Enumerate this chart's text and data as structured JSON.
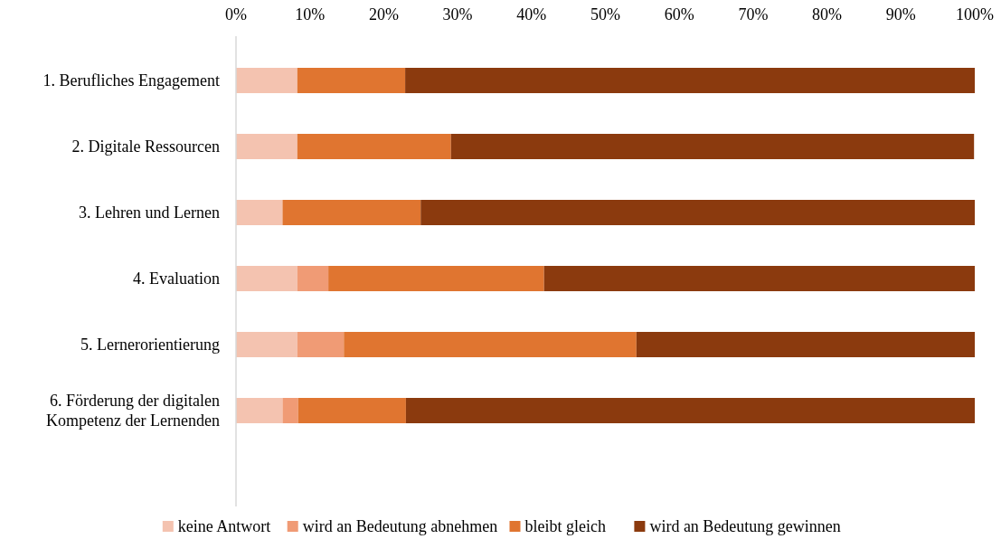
{
  "chart_data": {
    "type": "bar",
    "orientation": "horizontal",
    "stacked": true,
    "categories": [
      "1. Berufliches Engagement",
      "2. Digitale Ressourcen",
      "3. Lehren und Lernen",
      "4. Evaluation",
      "5. Lernerorientierung",
      "6. Förderung der digitalen Kompetenz der Lernenden"
    ],
    "series": [
      {
        "name": "keine Antwort",
        "color": "#f4c3b0",
        "values": [
          8.3,
          8.3,
          6.3,
          8.3,
          8.3,
          6.3
        ]
      },
      {
        "name": "wird an Bedeutung abnehmen",
        "color": "#f09b75",
        "values": [
          0,
          0,
          0,
          4.2,
          6.3,
          2.1
        ]
      },
      {
        "name": "bleibt gleich",
        "color": "#e07530",
        "values": [
          14.6,
          20.8,
          18.7,
          29.2,
          39.6,
          14.6
        ]
      },
      {
        "name": "wird an Bedeutung gewinnen",
        "color": "#8b3a0e",
        "values": [
          77.1,
          70.8,
          75,
          58.3,
          45.8,
          77
        ]
      }
    ],
    "xlim": [
      0,
      100
    ],
    "xticks": [
      {
        "value": 0,
        "label": "0%"
      },
      {
        "value": 10,
        "label": "10%"
      },
      {
        "value": 20,
        "label": "20%"
      },
      {
        "value": 30,
        "label": "30%"
      },
      {
        "value": 40,
        "label": "40%"
      },
      {
        "value": 50,
        "label": "50%"
      },
      {
        "value": 60,
        "label": "60%"
      },
      {
        "value": 70,
        "label": "70%"
      },
      {
        "value": 80,
        "label": "80%"
      },
      {
        "value": 90,
        "label": "90%"
      },
      {
        "value": 100,
        "label": "100%"
      }
    ],
    "grid": false,
    "legend": "bottom"
  }
}
